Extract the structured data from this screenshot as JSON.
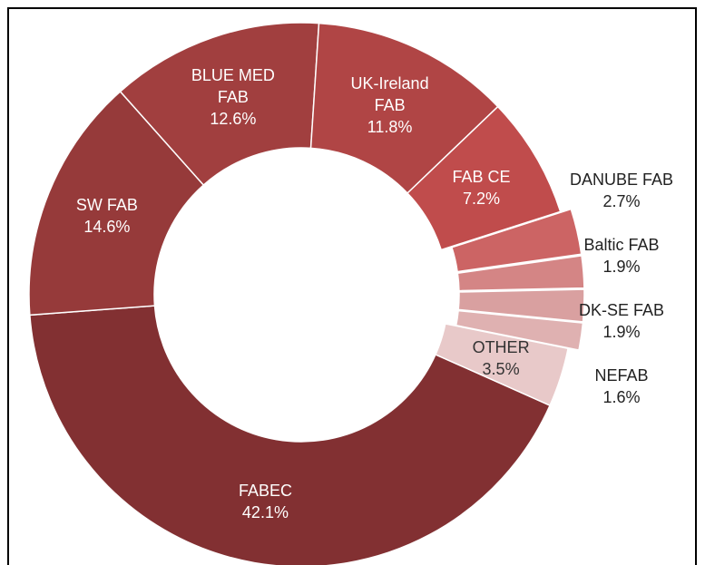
{
  "chart_data": {
    "type": "donut",
    "categories": [
      "FABEC",
      "SW FAB",
      "BLUE MED FAB",
      "UK-Ireland FAB",
      "FAB CE",
      "DANUBE FAB",
      "Baltic FAB",
      "DK-SE FAB",
      "NEFAB",
      "OTHER"
    ],
    "values": [
      42.1,
      14.6,
      12.6,
      11.8,
      7.2,
      2.7,
      1.9,
      1.9,
      1.6,
      3.5
    ],
    "value_labels": [
      "42.1%",
      "14.6%",
      "12.6%",
      "11.8%",
      "7.2%",
      "2.7%",
      "1.9%",
      "1.9%",
      "1.6%",
      "3.5%"
    ],
    "colors": [
      "#823032",
      "#963a3a",
      "#a13f3f",
      "#b04545",
      "#c04c4c",
      "#cc6464",
      "#d48585",
      "#d9a0a0",
      "#dfb1b1",
      "#e8c9c9"
    ],
    "exploded": [
      false,
      false,
      false,
      false,
      false,
      true,
      true,
      true,
      true,
      false
    ]
  }
}
